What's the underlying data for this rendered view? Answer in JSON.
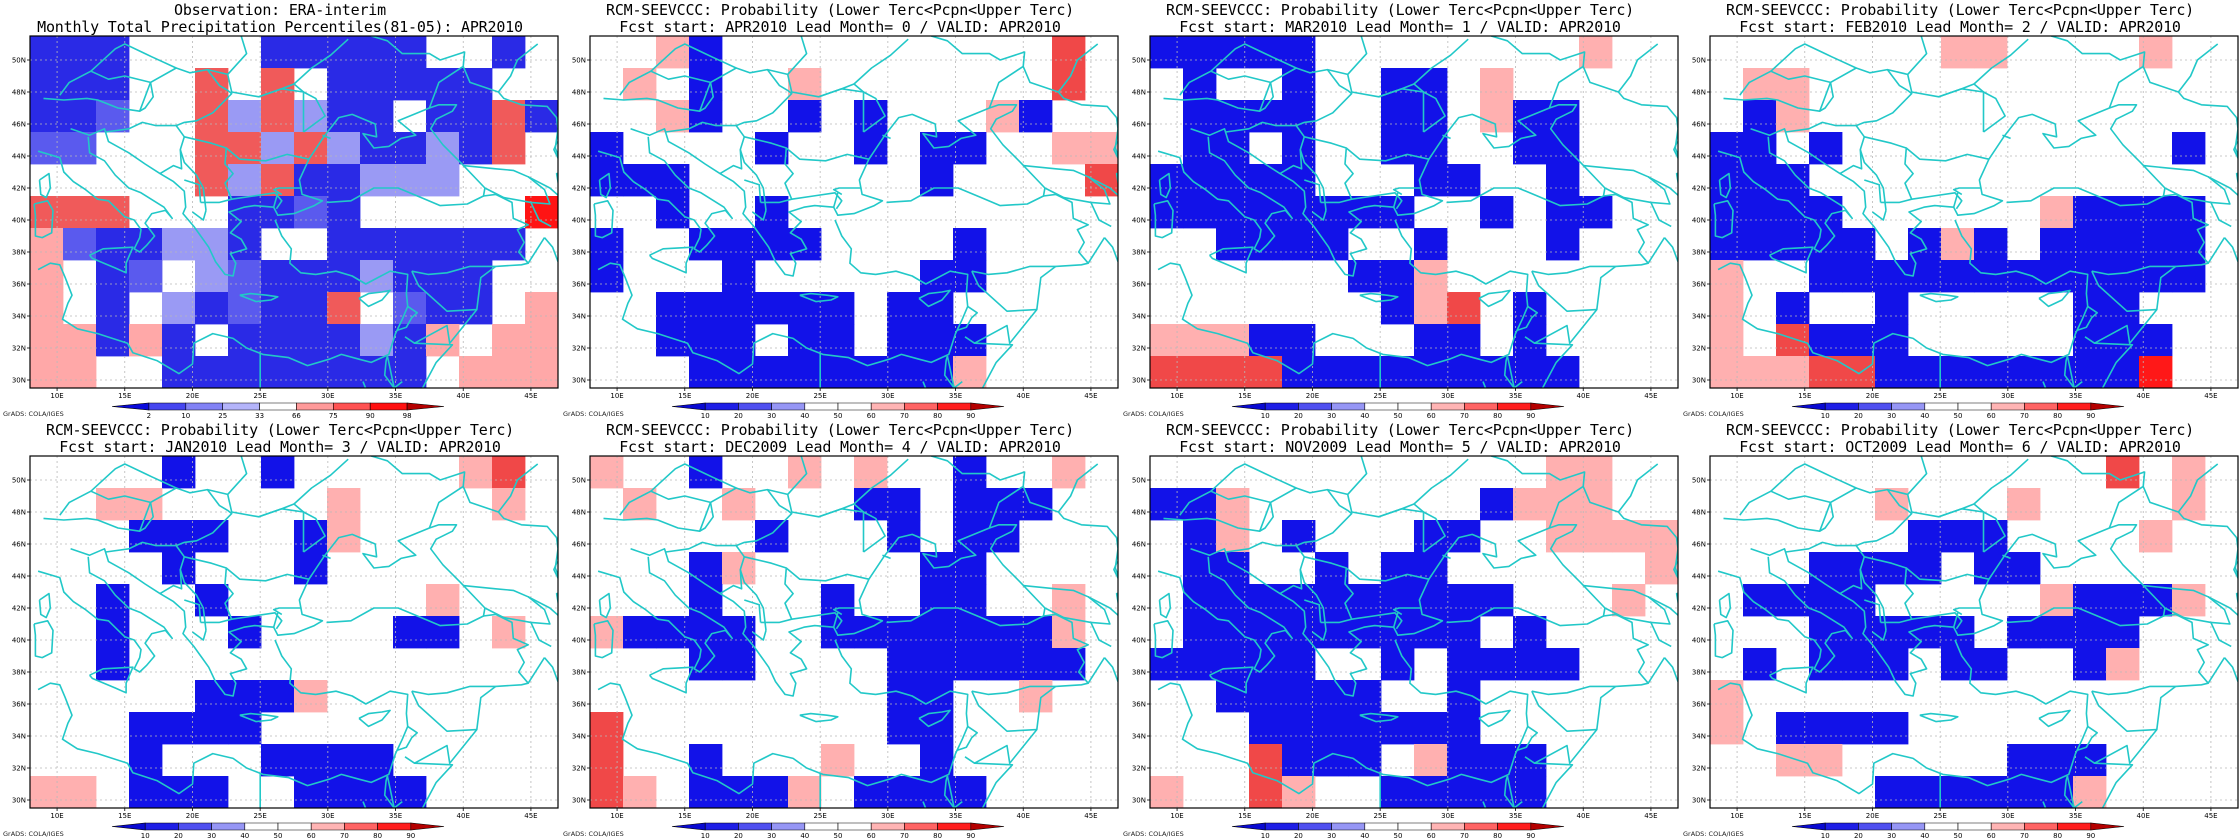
{
  "page": {
    "background": "#ffffff",
    "coastline_color": "#22c8c8",
    "grid_color": "#b8b8b8"
  },
  "map_axes": {
    "lon_labels": [
      "10E",
      "15E",
      "20E",
      "25E",
      "30E",
      "35E",
      "40E",
      "45E"
    ],
    "lat_labels": [
      "50N",
      "48N",
      "46N",
      "44N",
      "42N",
      "40N",
      "38N",
      "36N",
      "34N",
      "32N",
      "30N"
    ]
  },
  "colorbars": {
    "observation": {
      "labels": [
        "2",
        "10",
        "25",
        "33",
        "66",
        "75",
        "90",
        "98"
      ],
      "colors": [
        "#0a0adc",
        "#4646f0",
        "#8282f5",
        "#b4b4fa",
        "#ffffff",
        "#ff9a9a",
        "#ff5252",
        "#ff1010",
        "#b40000"
      ]
    },
    "forecast": {
      "labels": [
        "10",
        "20",
        "30",
        "40",
        "50",
        "60",
        "70",
        "80",
        "90"
      ],
      "colors": [
        "#0a0ad2",
        "#1e1ee6",
        "#5050f0",
        "#9696f5",
        "#ffffff",
        "#ffffff",
        "#ffb4b4",
        "#ff6464",
        "#ff1e1e",
        "#b40000"
      ]
    }
  },
  "panels": [
    {
      "id": "observation",
      "title_line1": "Observation: ERA-interim",
      "title_line2": "Monthly Total Precipitation Percentiles(81-05): APR2010",
      "colorbar": "observation",
      "credit": "GrADS: COLA/IGES",
      "cell_colors": {
        "W": "#ffffff",
        "B": "#2a2ae6",
        "M": "#5a5aee",
        "L": "#9a9af4",
        "P": "#ffa8a8",
        "R": "#f05a5a",
        "D": "#ff1414"
      },
      "grid_rows": [
        "BBBWWWWBBBBBWWBW",
        "BBBWWRWRWBBBBBWW",
        "BBMWWRLRLBBWBBRB",
        "MMWWWRRLRLBBLBRW",
        "WWWWWRLRBBLLLWWW",
        "RRRWWWBBMBWWWWWD",
        "PMBBLLBWWBBBBBBW",
        "PWBMWLMBBBLBBBWW",
        "PWBWLBMBBRWMBBWP",
        "PPBPBWBBBBLBPWPP",
        "PPWWBBBBBBBBWPPP"
      ]
    },
    {
      "id": "lead0",
      "title_line1": "RCM-SEEVCCC: Probability (Lower Terc<Pcpn<Upper Terc)",
      "title_line2": "Fcst start: APR2010  Lead Month= 0 / VALID: APR2010",
      "colorbar": "forecast",
      "credit": "GrADS: COLA/IGES",
      "cell_colors": {
        "W": "#ffffff",
        "B": "#1212e8",
        "P": "#ffb0b0",
        "R": "#f04848"
      },
      "grid_rows": [
        "WWPBWWWWWWWWWWRW",
        "WPWBWWPWWWWWWWRW",
        "WWPBWWBWBWWWPBWW",
        "BWWWWBWWBWBBWWPP",
        "BBBWWWWWWWBWWWWR",
        "WWBWWBWWWWWWWWWW",
        "BWWBBBBWWWWBWWWW",
        "BWWWBWWWWWBBWWWW",
        "WWBBBBBBWBBWWWWW",
        "WWBBBWBBWBBBWWWW",
        "WWWBBBBBBBBPWWWW"
      ]
    },
    {
      "id": "lead1",
      "title_line1": "RCM-SEEVCCC: Probability (Lower Terc<Pcpn<Upper Terc)",
      "title_line2": "Fcst start: MAR2010  Lead Month= 1 / VALID: APR2010",
      "colorbar": "forecast",
      "credit": "GrADS: COLA/IGES",
      "cell_colors": {
        "W": "#ffffff",
        "B": "#1212e8",
        "P": "#ffb0b0",
        "R": "#f04848",
        "D": "#ff1818"
      },
      "grid_rows": [
        "BBBBBWWWWWWWWPWW",
        "WBWWBWWBBWPWWWWW",
        "WBBBBWWBBWPBBWWW",
        "WBBWBWWBBWWBBWWW",
        "BBBBBWWWBBWWBWWW",
        "BBBBBBBBWWBWBBWW",
        "WWBBBBWWBWWWBWWW",
        "WWWWWWBBPWWWWWWW",
        "WWWWWWWBPRWBWWWW",
        "PPPBBWWWBBWBWWWW",
        "RRRRBBBBBBBBBWWW"
      ]
    },
    {
      "id": "lead2",
      "title_line1": "RCM-SEEVCCC: Probability (Lower Terc<Pcpn<Upper Terc)",
      "title_line2": "Fcst start: FEB2010  Lead Month= 2 / VALID: APR2010",
      "colorbar": "forecast",
      "credit": "GrADS: COLA/IGES",
      "cell_colors": {
        "W": "#ffffff",
        "B": "#1212e8",
        "P": "#ffb0b0",
        "R": "#f04848",
        "D": "#ff1818"
      },
      "grid_rows": [
        "WWWWWWWPPWWWWPWW",
        "WPPWWWWWWWWWWWWW",
        "WBPWWWWWWWWWWWWW",
        "BBWBWWWWWWWWWWBW",
        "BBBWWWWWWWWWWWWW",
        "BBBBWWWWWWPBBBBW",
        "BBBBBWBPBWBBBBBW",
        "PWWBBBBBBBBBBBBW",
        "PWBWWBWWWWWBBWWW",
        "PWRBBBWWWWWBBBWW",
        "PPPRRBBBBBBBBDWW"
      ]
    },
    {
      "id": "lead3",
      "title_line1": "RCM-SEEVCCC: Probability (Lower Terc<Pcpn<Upper Terc)",
      "title_line2": "Fcst start: JAN2010  Lead Month= 3 / VALID: APR2010",
      "colorbar": "forecast",
      "credit": "GrADS: COLA/IGES",
      "cell_colors": {
        "W": "#ffffff",
        "B": "#1212e8",
        "P": "#ffb0b0",
        "R": "#f04848"
      },
      "grid_rows": [
        "WWWWBWWBWWWWWPRW",
        "WWPPWWWWWPWWWWPW",
        "WWWBBBWWBPWWWWWW",
        "WWWWBWWWBWWWWWWW",
        "WWBWWBWWWWWWPWWW",
        "WWBWWWBWWWWBBWPW",
        "WWBWWWWWWWWWWWWW",
        "WWWWWBBBPWWWWWWW",
        "WWWBBBBWWWWWWWWW",
        "WWWBWWWBBBBWWWWW",
        "PPWBBBWWBBBBWWWW"
      ]
    },
    {
      "id": "lead4",
      "title_line1": "RCM-SEEVCCC: Probability (Lower Terc<Pcpn<Upper Terc)",
      "title_line2": "Fcst start: DEC2009  Lead Month= 4 / VALID: APR2010",
      "colorbar": "forecast",
      "credit": "GrADS: COLA/IGES",
      "cell_colors": {
        "W": "#ffffff",
        "B": "#1212e8",
        "P": "#ffb0b0",
        "R": "#f04848"
      },
      "grid_rows": [
        "PWWBWWPWPWWBWWPW",
        "WPWWPWWWBBWBBBWW",
        "WWWWWBWWWBWBBWWW",
        "WWWBPWWWWWBBWWWW",
        "WWWBWWWBWWBBWWPW",
        "PBBBBWWBBBBBBBPW",
        "WWWBBWWWWBBBBBBW",
        "WWWWWWWWWBBWWPWW",
        "RWWWWWWWWBBWWWWW",
        "RWWBWWWPWWBWWWWW",
        "RPWBBBPWBBBBWWWW"
      ]
    },
    {
      "id": "lead5",
      "title_line1": "RCM-SEEVCCC: Probability (Lower Terc<Pcpn<Upper Terc)",
      "title_line2": "Fcst start: NOV2009  Lead Month= 5 / VALID: APR2010",
      "colorbar": "forecast",
      "credit": "GrADS: COLA/IGES",
      "cell_colors": {
        "W": "#ffffff",
        "B": "#1212e8",
        "P": "#ffb0b0",
        "R": "#f04848"
      },
      "grid_rows": [
        "WWWWWWWWWWWWPPWW",
        "BBPWWWWWWWBPPPWW",
        "WBPWBWWWBBWWPPPP",
        "WBBWWBWBBWWWWWWP",
        "WBBBBBBBBBBWWWPW",
        "WBBBBBBBBBWBWWWW",
        "BBBBBWWBWBBBBWWW",
        "WWBBBBBWWBWWWWWW",
        "WWWBBBBBBBWWWWWW",
        "WWWRBBBWPBBBWWWW",
        "PWWRPWWBBBBBWWWW"
      ]
    },
    {
      "id": "lead6",
      "title_line1": "RCM-SEEVCCC: Probability (Lower Terc<Pcpn<Upper Terc)",
      "title_line2": "Fcst start: OCT2009  Lead Month= 6 / VALID: APR2010",
      "colorbar": "forecast",
      "credit": "GrADS: COLA/IGES",
      "cell_colors": {
        "W": "#ffffff",
        "B": "#1212e8",
        "P": "#ffb0b0",
        "R": "#f04848"
      },
      "grid_rows": [
        "WWWWWWWWWWWWRWPW",
        "WWWWWPWWWPWWWWPW",
        "WWWWWWBBBWWWWPWW",
        "WWWBBBBWBBWWWWWW",
        "WBBBBWWWWWPBBBPW",
        "WWWBBBBBWBBBBWWW",
        "WBWBBBWBBWWBPWWW",
        "PWWWWWWWWWWWWWWW",
        "PWBBBBWWWWWWWWWW",
        "WWPPWWWWWBBBWWWW",
        "WWWWWBBBBBBPWWWW"
      ]
    }
  ]
}
